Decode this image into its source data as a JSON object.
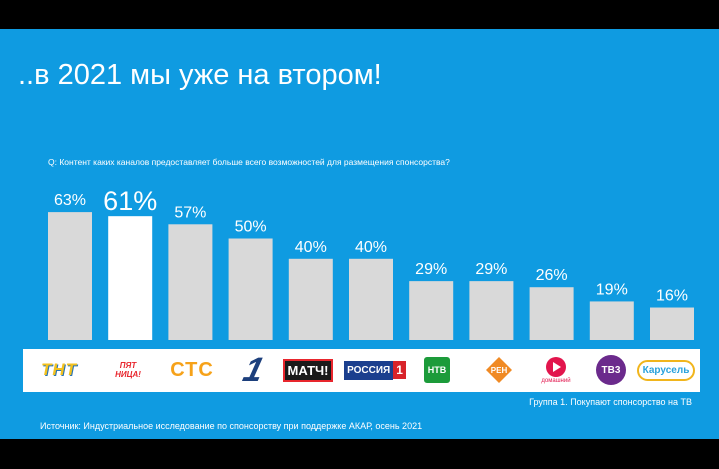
{
  "slide": {
    "title": "..в 2021 мы уже на втором!",
    "question": "Q: Контент каких каналов предоставляет больше всего возможностей для размещения спонсорства?",
    "group_note": "Группа 1. Покупают спонсорство на ТВ",
    "source": "Источник: Индустриальное исследование по спонсорству при поддержке АКАР, осень 2021"
  },
  "chart_data": {
    "type": "bar",
    "categories": [
      "ТНТ",
      "Пятница!",
      "СТС",
      "Первый канал",
      "Матч!",
      "Россия 1",
      "НТВ",
      "РЕН ТВ",
      "Домашний",
      "ТВ-3",
      "Карусель"
    ],
    "values": [
      63,
      61,
      57,
      50,
      40,
      40,
      29,
      29,
      26,
      19,
      16
    ],
    "labels": [
      "63%",
      "61%",
      "57%",
      "50%",
      "40%",
      "40%",
      "29%",
      "29%",
      "26%",
      "19%",
      "16%"
    ],
    "highlight_index": 1,
    "bar_color": "#d9d9d9",
    "highlight_color": "#ffffff",
    "ylim": [
      0,
      100
    ],
    "grid": false
  },
  "logos": {
    "tnt": "ТНТ",
    "pyatnitsa_1": "ПЯТ",
    "pyatnitsa_2": "НИЦА!",
    "sts": "СТС",
    "perviy": "1",
    "match": "МАТЧ!",
    "rossiya": "РОССИЯ",
    "rossiya_num": "1",
    "ntv": "НТВ",
    "ren": "РЕН",
    "domashniy": "домашний",
    "tv3": "ТВ3",
    "karusel": "Карусель"
  },
  "colors": {
    "background": "#0f9be1",
    "text": "#ffffff"
  }
}
